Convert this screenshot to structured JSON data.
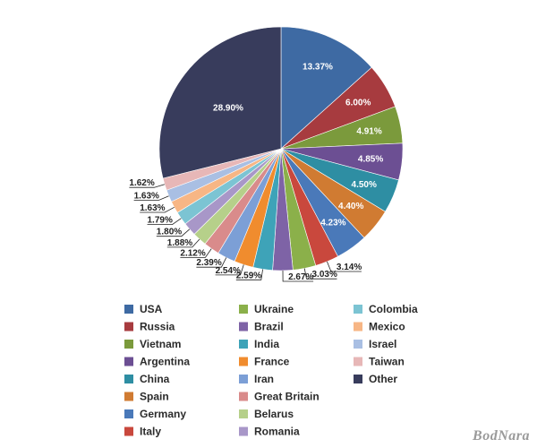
{
  "chart_data": {
    "type": "pie",
    "title": "",
    "series": [
      {
        "name": "USA",
        "value": 13.37,
        "color": "#3e6aa3"
      },
      {
        "name": "Russia",
        "value": 6.0,
        "color": "#a73b3f"
      },
      {
        "name": "Vietnam",
        "value": 4.91,
        "color": "#7b9a3c"
      },
      {
        "name": "Argentina",
        "value": 4.85,
        "color": "#6c4f93"
      },
      {
        "name": "China",
        "value": 4.5,
        "color": "#2e8ea3"
      },
      {
        "name": "Spain",
        "value": 4.4,
        "color": "#d07b32"
      },
      {
        "name": "Germany",
        "value": 4.23,
        "color": "#4a79b9"
      },
      {
        "name": "Italy",
        "value": 3.14,
        "color": "#c9483d"
      },
      {
        "name": "Ukraine",
        "value": 3.03,
        "color": "#8bb04a"
      },
      {
        "name": "Brazil",
        "value": 2.67,
        "color": "#7e63a6"
      },
      {
        "name": "India",
        "value": 2.59,
        "color": "#3ea3b8"
      },
      {
        "name": "France",
        "value": 2.54,
        "color": "#f08c2e"
      },
      {
        "name": "Iran",
        "value": 2.39,
        "color": "#7c9fd6"
      },
      {
        "name": "Great Britain",
        "value": 2.12,
        "color": "#d98b8b"
      },
      {
        "name": "Belarus",
        "value": 1.88,
        "color": "#b6d08a"
      },
      {
        "name": "Romania",
        "value": 1.8,
        "color": "#a897c8"
      },
      {
        "name": "Colombia",
        "value": 1.79,
        "color": "#7cc4d3"
      },
      {
        "name": "Mexico",
        "value": 1.63,
        "color": "#f7b685"
      },
      {
        "name": "Israel",
        "value": 1.63,
        "color": "#a9bfe3"
      },
      {
        "name": "Taiwan",
        "value": 1.62,
        "color": "#e7b7b7"
      },
      {
        "name": "Other",
        "value": 28.9,
        "color": "#383c5c"
      }
    ],
    "labels": [
      "13.37%",
      "6.00%",
      "4.91%",
      "4.85%",
      "4.50%",
      "4.40%",
      "4.23%",
      "3.14%",
      "3.03%",
      "2.67%",
      "2.59%",
      "2.54%",
      "2.39%",
      "2.12%",
      "1.88%",
      "1.80%",
      "1.79%",
      "1.63%",
      "1.63%",
      "1.62%",
      "28.90%"
    ],
    "start_angle_deg": 0,
    "direction": "clockwise",
    "legend": {
      "placement": "bottom",
      "columns": [
        [
          "USA",
          "Russia",
          "Vietnam",
          "Argentina",
          "China",
          "Spain",
          "Germany",
          "Italy"
        ],
        [
          "Ukraine",
          "Brazil",
          "India",
          "France",
          "Iran",
          "Great Britain",
          "Belarus",
          "Romania"
        ],
        [
          "Colombia",
          "Mexico",
          "Israel",
          "Taiwan",
          "Other"
        ]
      ]
    }
  },
  "watermark": "BodNara"
}
